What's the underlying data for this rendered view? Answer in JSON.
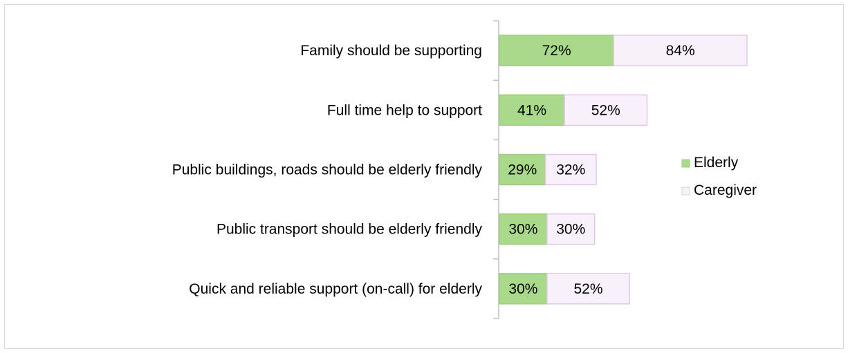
{
  "chart_data": {
    "type": "bar",
    "orientation": "horizontal",
    "stacked": true,
    "categories": [
      "Family should be supporting",
      "Full time help to support",
      "Public buildings, roads should be elderly friendly",
      "Public transport should be elderly friendly",
      "Quick and reliable support (on-call) for elderly"
    ],
    "series": [
      {
        "name": "Elderly",
        "values": [
          72,
          41,
          29,
          30,
          30
        ],
        "labels": [
          "72%",
          "41%",
          "29%",
          "30%",
          "30%"
        ],
        "color": "#a9d98a"
      },
      {
        "name": "Caregiver",
        "values": [
          84,
          52,
          32,
          30,
          52
        ],
        "labels": [
          "84%",
          "52%",
          "32%",
          "30%",
          "52%"
        ],
        "color": "#f8f0fa"
      }
    ],
    "legend_position": "right",
    "grid": false,
    "xaxis_visible": false
  },
  "colors": {
    "axis": "#bfbfbf",
    "bar_border": "#e3c8e6",
    "elderly_border": "#9fcf7c"
  }
}
